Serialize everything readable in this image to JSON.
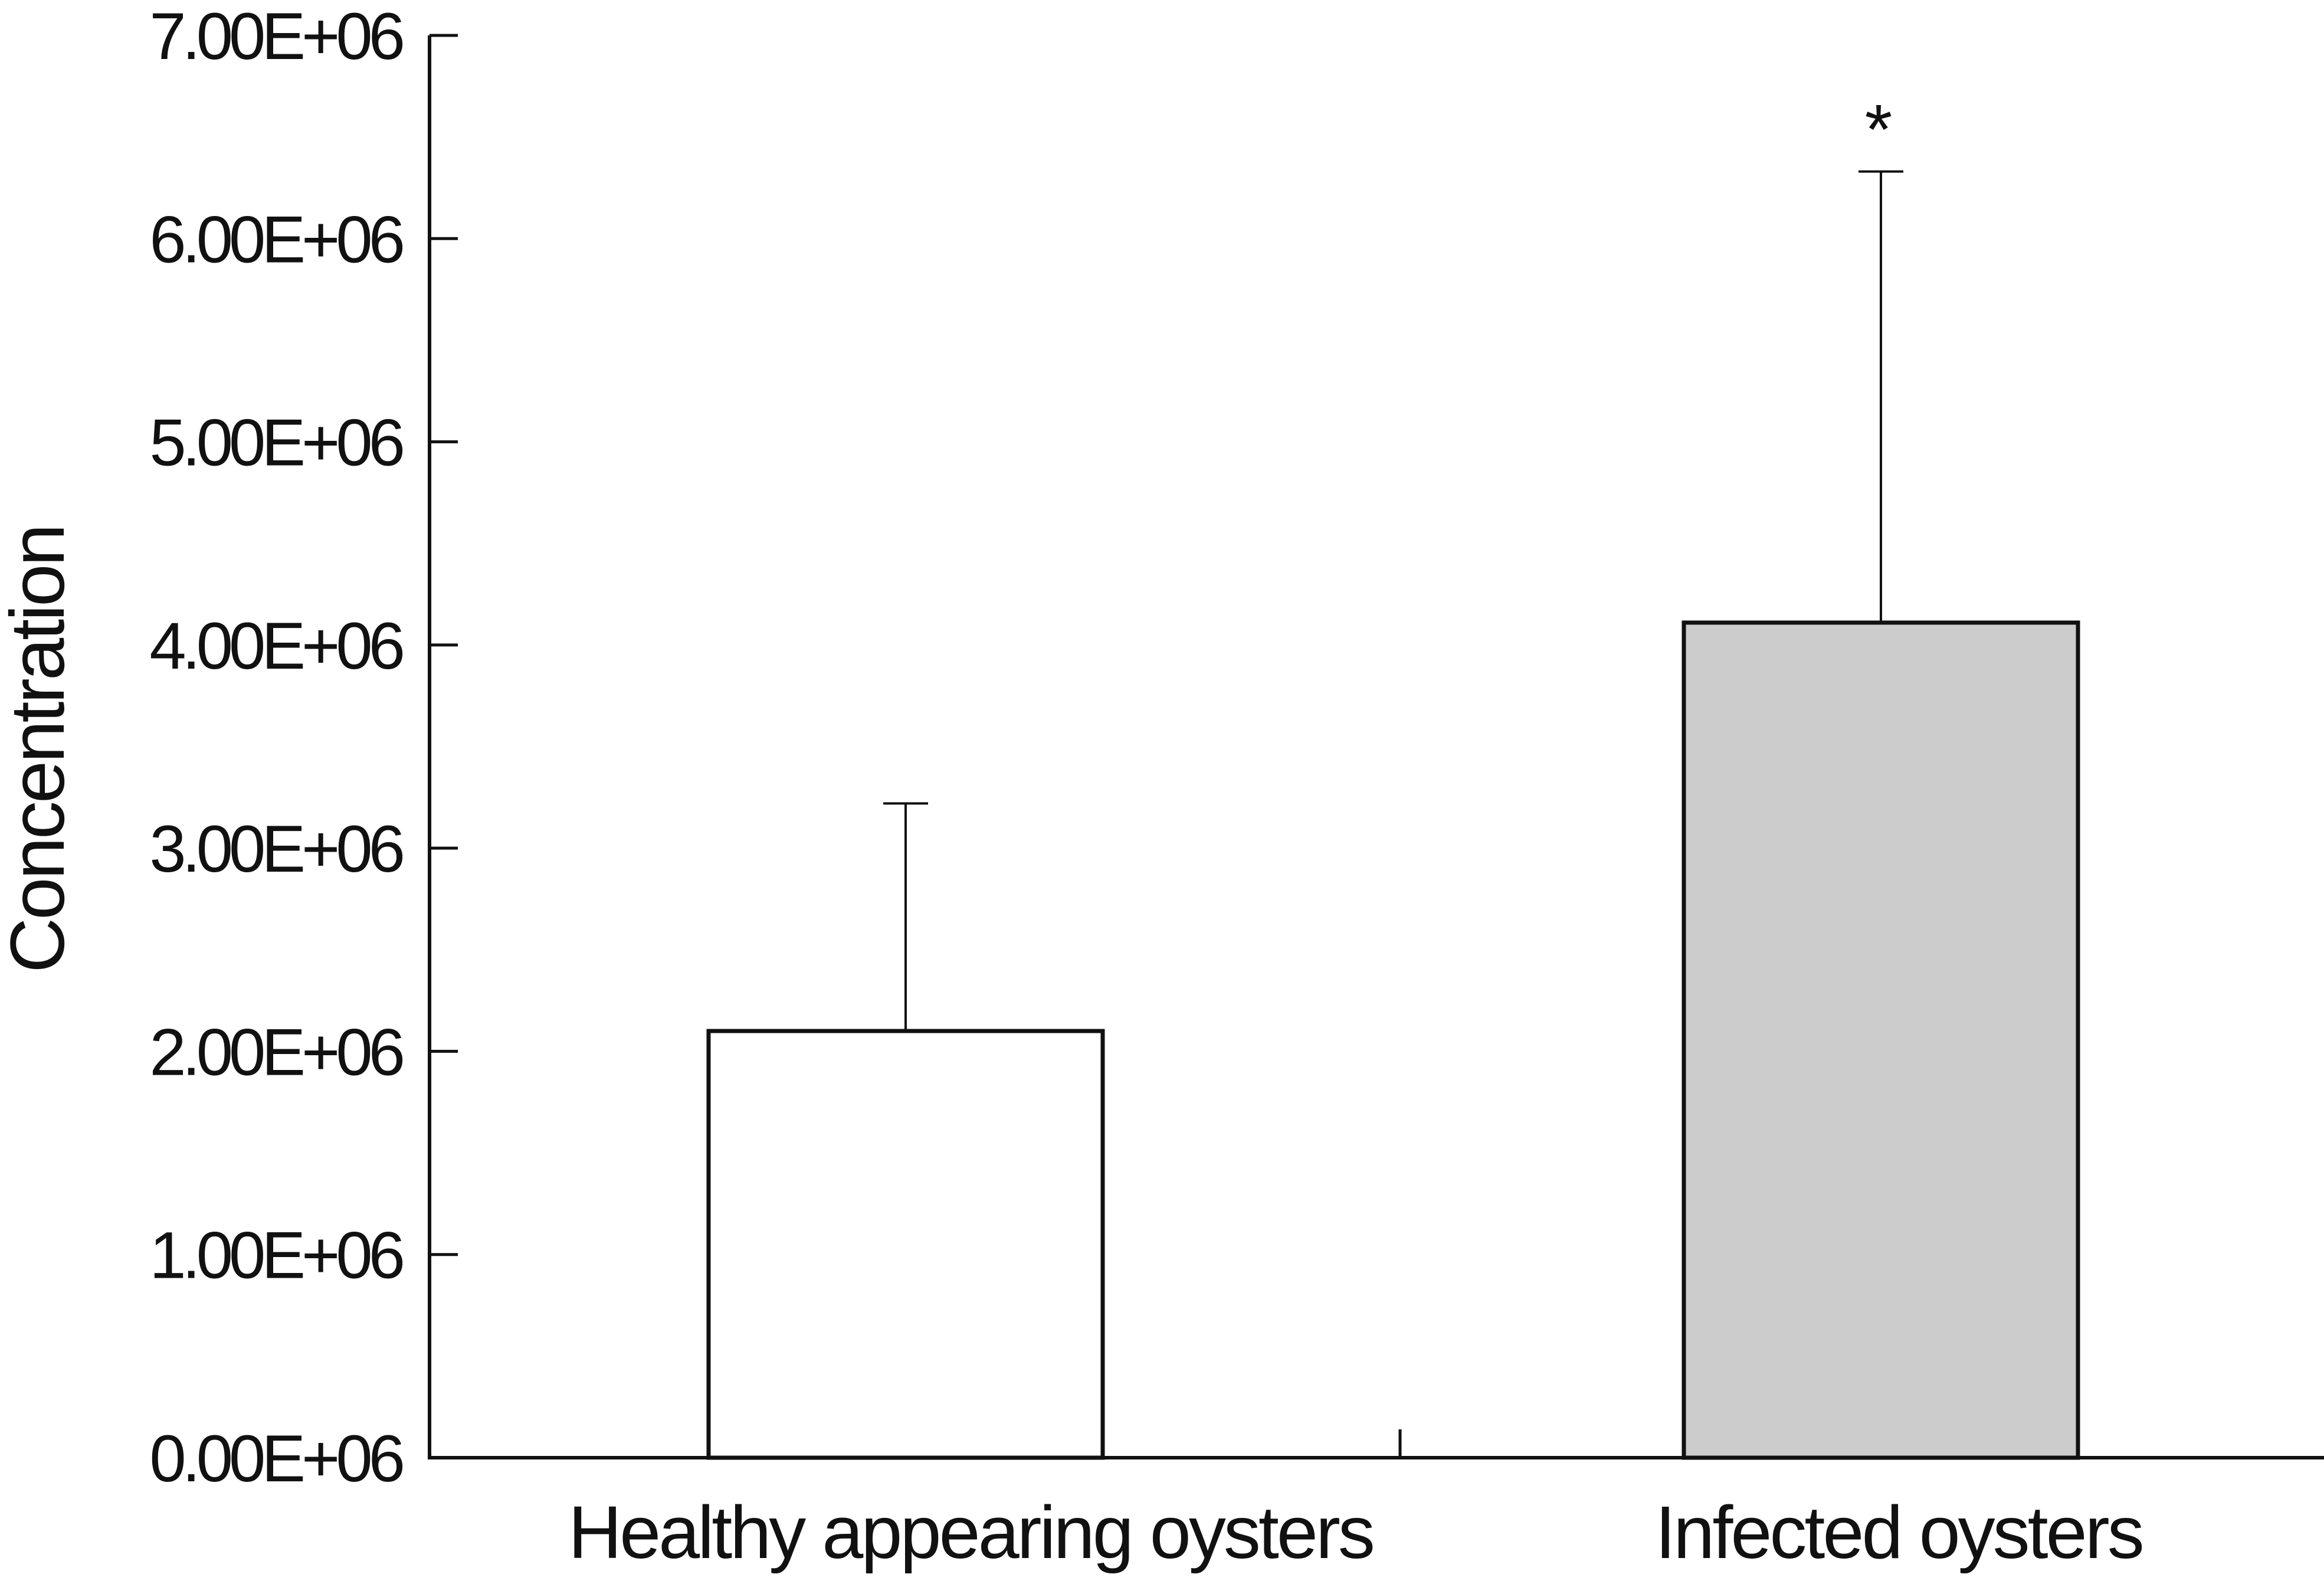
{
  "chart_data": {
    "type": "bar",
    "categories": [
      "Healthy appearing oysters",
      "Infected oysters"
    ],
    "values": [
      2100000,
      4110000
    ],
    "error_upper": [
      3220000,
      6330000
    ],
    "bar_colors": [
      "#ffffff",
      "#cccccc"
    ],
    "annotations": [
      {
        "category": "Infected oysters",
        "text": "*"
      }
    ],
    "xlabel": "",
    "ylabel": "Concentration",
    "ylim": [
      0,
      7000000
    ],
    "yticks": [
      0,
      1000000,
      2000000,
      3000000,
      4000000,
      5000000,
      6000000,
      7000000
    ],
    "ytick_labels": [
      "0.00E+06",
      "1.00E+06",
      "2.00E+06",
      "3.00E+06",
      "4.00E+06",
      "5.00E+06",
      "6.00E+06",
      "7.00E+06"
    ],
    "grid": false,
    "legend": "none"
  }
}
